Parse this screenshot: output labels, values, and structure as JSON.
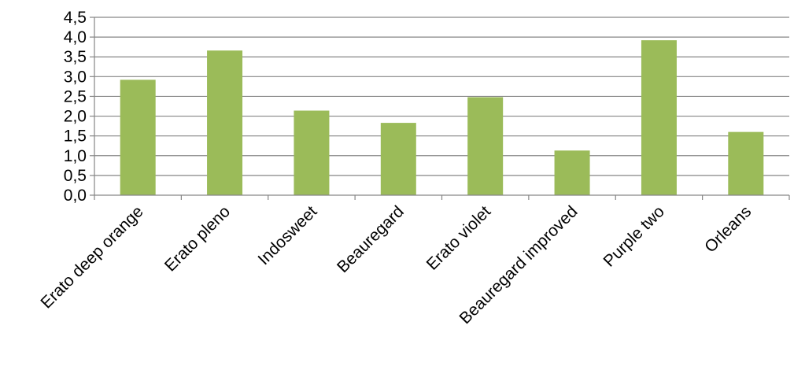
{
  "chart_data": {
    "type": "bar",
    "title": "",
    "xlabel": "",
    "ylabel": "",
    "categories": [
      "Erato deep orange",
      "Erato pleno",
      "Indosweet",
      "Beauregard",
      "Erato violet",
      "Beauregard improved",
      "Purple two",
      "Orleans"
    ],
    "values": [
      2.92,
      3.66,
      2.14,
      1.83,
      2.48,
      1.13,
      3.92,
      1.6
    ],
    "ylim": [
      0,
      4.5
    ],
    "yticks": [
      "0,0",
      "0,5",
      "1,0",
      "1,5",
      "2,0",
      "2,5",
      "3,0",
      "3,5",
      "4,0",
      "4,5"
    ],
    "grid": true,
    "legend": "none",
    "colors": {
      "bar": "#9BBB59",
      "gridline": "#868686",
      "axis": "#868686"
    }
  }
}
